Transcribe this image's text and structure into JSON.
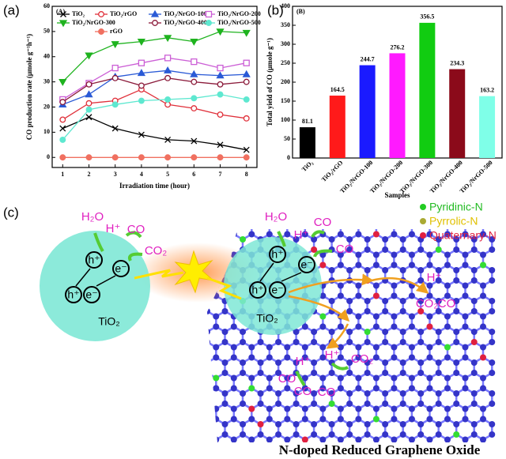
{
  "chart_data": [
    {
      "type": "line",
      "panel": "(a)",
      "inner_label": "(A)",
      "x_label": "Irradiation time (hour)",
      "y_label": "CO production rate (μmole g⁻¹h⁻¹)",
      "x": [
        1,
        2,
        3,
        4,
        5,
        6,
        7,
        8
      ],
      "xlim": [
        0.6,
        8.4
      ],
      "xticks": [
        1,
        2,
        3,
        4,
        5,
        6,
        7,
        8
      ],
      "ylim": [
        -4,
        60
      ],
      "yticks": [
        0,
        10,
        20,
        30,
        40,
        50,
        60
      ],
      "series": [
        {
          "name": "TiO₂",
          "color": "#000000",
          "marker": "x",
          "values": [
            11.5,
            16,
            11.5,
            9,
            7,
            6.5,
            5,
            3
          ]
        },
        {
          "name": "TiO₂/rGO",
          "color": "#e0303a",
          "marker": "circle-open",
          "values": [
            15,
            21.5,
            22.5,
            27,
            21,
            19.5,
            17,
            15.5
          ]
        },
        {
          "name": "TiO₂/NrGO-100",
          "color": "#2a5ad6",
          "marker": "triangle",
          "values": [
            21,
            25,
            32,
            33.5,
            34.5,
            33,
            32.5,
            33
          ]
        },
        {
          "name": "TiO₂/NrGO-200",
          "color": "#cc5fd6",
          "marker": "square-open",
          "values": [
            23,
            29.5,
            35.5,
            37.5,
            39.5,
            38,
            35.5,
            37.5
          ]
        },
        {
          "name": "TiO₂/NrGO-300",
          "color": "#1fb31f",
          "marker": "triangle-down",
          "values": [
            30,
            40.5,
            45,
            46,
            47.5,
            46,
            50,
            49.5
          ]
        },
        {
          "name": "TiO₂/NrGO-400",
          "color": "#8b1a3a",
          "marker": "circle-open",
          "values": [
            22,
            29,
            31.5,
            28.5,
            31.5,
            30,
            29,
            30
          ]
        },
        {
          "name": "TiO₂/NrGO-500",
          "color": "#5ee8d0",
          "marker": "circle",
          "values": [
            7,
            19,
            21,
            22.5,
            23,
            23.5,
            25,
            23
          ]
        },
        {
          "name": "rGO",
          "color": "#f07060",
          "marker": "circle",
          "values": [
            0,
            0,
            0,
            0,
            0,
            0,
            0,
            0
          ]
        }
      ]
    },
    {
      "type": "bar",
      "panel": "(b)",
      "inner_label": "(B)",
      "x_label": "Samples",
      "y_label": "Total yield of CO (μmole g⁻¹)",
      "categories": [
        "TiO₂",
        "TiO₂/rGO",
        "TiO₂/NrGO-100",
        "TiO₂/NrGO-200",
        "TiO₂/NrGO-300",
        "TiO₂/NrGO-400",
        "TiO₂/NrGO-500"
      ],
      "values": [
        81.1,
        164.5,
        244.7,
        276.2,
        356.5,
        234.3,
        163.2
      ],
      "colors": [
        "#000000",
        "#ff1a1a",
        "#1a1aff",
        "#ff1aff",
        "#11cc11",
        "#8b0a1a",
        "#7fffe8"
      ],
      "ylim": [
        0,
        400
      ],
      "yticks": [
        0,
        50,
        100,
        150,
        200,
        250,
        300,
        350,
        400
      ]
    }
  ],
  "diagram": {
    "panel": "(c)",
    "labels": [
      "H₂O",
      "H⁺",
      "CO",
      "CO₂",
      "h⁺",
      "e⁻",
      "h⁺",
      "e⁻",
      "TiO₂",
      "H₂O",
      "CO",
      "H⁺",
      "CO",
      "h⁺",
      "e⁻",
      "h⁺",
      "e⁻",
      "TiO₂",
      "H⁺",
      "CO₂",
      "CO",
      "H⁺",
      "CO",
      "CO",
      "H⁺",
      "CO₂",
      "CO"
    ],
    "legend": [
      "Pyridinic-N",
      "Pyrrolic-N",
      "Quaternary-N"
    ],
    "caption": "N-doped Reduced Graphene Oxide"
  }
}
